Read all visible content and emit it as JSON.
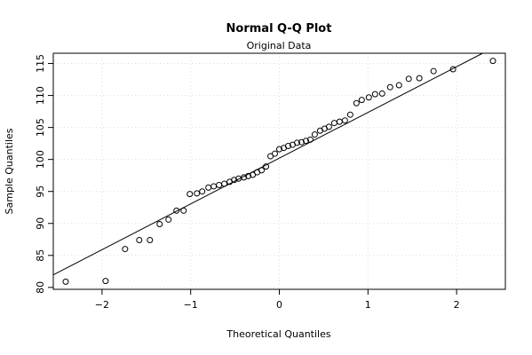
{
  "chart_data": {
    "type": "scatter",
    "title": "Normal Q-Q Plot",
    "subtitle": "Original Data",
    "xlabel": "Theoretical Quantiles",
    "ylabel": "Sample Quantiles",
    "xlim": [
      -2.55,
      2.55
    ],
    "ylim": [
      79.7,
      116.6
    ],
    "xticks": [
      -2,
      -1,
      0,
      1,
      2
    ],
    "xtick_labels": [
      "−2",
      "−1",
      "0",
      "1",
      "2"
    ],
    "yticks": [
      80,
      85,
      90,
      95,
      100,
      105,
      110,
      115
    ],
    "ytick_labels": [
      "80",
      "85",
      "90",
      "95",
      "100",
      "105",
      "110",
      "115"
    ],
    "grid": true,
    "reference_line": {
      "intercept": 100.2,
      "slope": 7.15
    },
    "points": {
      "x": [
        -2.41,
        -1.96,
        -1.74,
        -1.58,
        -1.46,
        -1.35,
        -1.25,
        -1.16,
        -1.08,
        -1.01,
        -0.93,
        -0.87,
        -0.8,
        -0.74,
        -0.68,
        -0.62,
        -0.56,
        -0.51,
        -0.46,
        -0.4,
        -0.35,
        -0.3,
        -0.25,
        -0.2,
        -0.15,
        -0.1,
        -0.05,
        0.0,
        0.05,
        0.1,
        0.15,
        0.2,
        0.25,
        0.3,
        0.35,
        0.4,
        0.46,
        0.51,
        0.56,
        0.62,
        0.68,
        0.74,
        0.8,
        0.87,
        0.93,
        1.01,
        1.08,
        1.16,
        1.25,
        1.35,
        1.46,
        1.58,
        1.74,
        1.96,
        2.41
      ],
      "y": [
        80.9,
        81.0,
        86.0,
        87.4,
        87.4,
        89.9,
        90.6,
        92.0,
        92.0,
        94.6,
        94.7,
        95.0,
        95.6,
        95.8,
        96.0,
        96.2,
        96.5,
        96.8,
        97.0,
        97.2,
        97.4,
        97.6,
        98.0,
        98.3,
        98.9,
        100.5,
        100.9,
        101.6,
        101.8,
        102.1,
        102.3,
        102.6,
        102.7,
        102.9,
        103.1,
        103.9,
        104.5,
        104.8,
        105.1,
        105.7,
        105.9,
        106.1,
        107.0,
        108.8,
        109.3,
        109.7,
        110.2,
        110.3,
        111.3,
        111.6,
        112.6,
        112.7,
        113.8,
        114.1,
        115.4
      ]
    }
  }
}
